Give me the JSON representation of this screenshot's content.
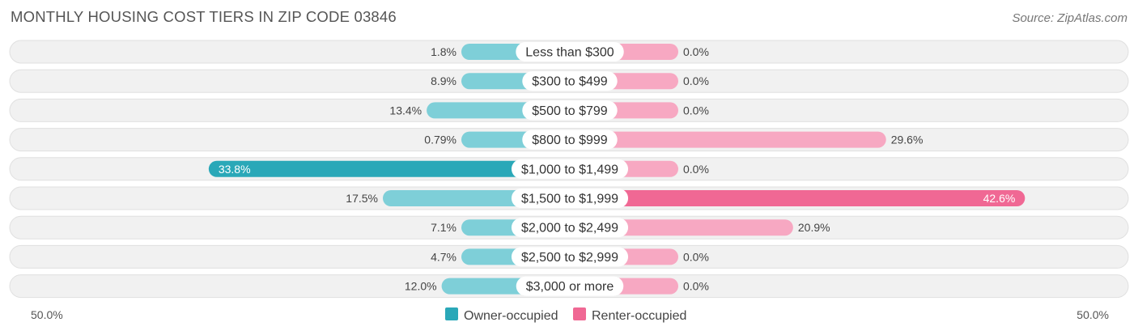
{
  "title": "MONTHLY HOUSING COST TIERS IN ZIP CODE 03846",
  "source": "Source: ZipAtlas.com",
  "colors": {
    "owner_light": "#7ecfd8",
    "owner_dark": "#2aa8b8",
    "renter_light": "#f7a8c2",
    "renter_dark": "#f06894",
    "row_bg": "#f1f1f1",
    "row_border": "#e0e0e0"
  },
  "chart_data": {
    "type": "bar",
    "orientation": "horizontal-diverging",
    "categories": [
      "Less than $300",
      "$300 to $499",
      "$500 to $799",
      "$800 to $999",
      "$1,000 to $1,499",
      "$1,500 to $1,999",
      "$2,000 to $2,499",
      "$2,500 to $2,999",
      "$3,000 or more"
    ],
    "series": [
      {
        "name": "Owner-occupied",
        "values": [
          1.8,
          8.9,
          13.4,
          0.79,
          33.8,
          17.5,
          7.1,
          4.7,
          12.0
        ],
        "labels": [
          "1.8%",
          "8.9%",
          "13.4%",
          "0.79%",
          "33.8%",
          "17.5%",
          "7.1%",
          "4.7%",
          "12.0%"
        ]
      },
      {
        "name": "Renter-occupied",
        "values": [
          0.0,
          0.0,
          0.0,
          29.6,
          0.0,
          42.6,
          20.9,
          0.0,
          0.0
        ],
        "labels": [
          "0.0%",
          "0.0%",
          "0.0%",
          "29.6%",
          "0.0%",
          "42.6%",
          "20.9%",
          "0.0%",
          "0.0%"
        ]
      }
    ],
    "axis": {
      "min": -50,
      "max": 50,
      "left_label": "50.0%",
      "right_label": "50.0%"
    },
    "legend": {
      "placement": "bottom-center",
      "entries": [
        "Owner-occupied",
        "Renter-occupied"
      ]
    }
  }
}
